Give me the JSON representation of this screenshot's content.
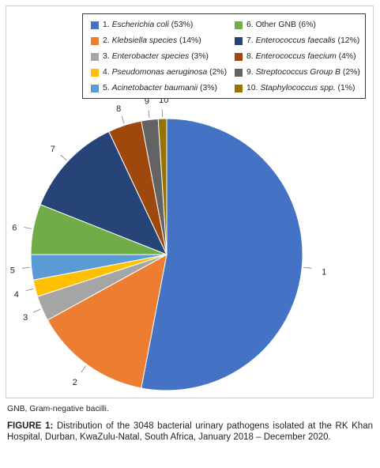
{
  "chart_data": {
    "type": "pie",
    "slices": [
      {
        "id": "1",
        "name": "Escherichia coli",
        "prefix": "1. ",
        "suffix": " (53%)",
        "value": 53,
        "color": "#4472C4"
      },
      {
        "id": "2",
        "name": "Klebsiella species",
        "prefix": "2. ",
        "suffix": " (14%)",
        "value": 14,
        "color": "#ED7D31"
      },
      {
        "id": "3",
        "name": "Enterobacter species",
        "prefix": "3. ",
        "suffix": " (3%)",
        "value": 3,
        "color": "#A5A5A5"
      },
      {
        "id": "4",
        "name": "Pseudomonas aeruginosa",
        "prefix": "4. ",
        "suffix": " (2%)",
        "value": 2,
        "color": "#FFC000"
      },
      {
        "id": "5",
        "name": "Acinetobacter baumanii",
        "prefix": "5. ",
        "suffix": " (3%)",
        "value": 3,
        "color": "#5B9BD5"
      },
      {
        "id": "6",
        "name": "Other GNB",
        "prefix": "6. ",
        "suffix": " (6%)",
        "value": 6,
        "color": "#70AD47",
        "italic": false
      },
      {
        "id": "7",
        "name": "Enterococcus faecalis",
        "prefix": "7. ",
        "suffix": " (12%)",
        "value": 12,
        "color": "#264478"
      },
      {
        "id": "8",
        "name": "Enterococcus faecium",
        "prefix": "8. ",
        "suffix": " (4%)",
        "value": 4,
        "color": "#9E480E"
      },
      {
        "id": "9",
        "name": "Streptococcus Group B",
        "prefix": "9. ",
        "suffix": " (2%)",
        "value": 2,
        "color": "#636363"
      },
      {
        "id": "10",
        "name": "Staphylococcus spp.",
        "prefix": "10. ",
        "suffix": " (1%)",
        "value": 1,
        "color": "#997300"
      }
    ],
    "legend_placement": "top",
    "start_angle": "top, clockwise"
  },
  "footnote": "GNB, Gram-negative bacilli.",
  "caption": {
    "label": "FIGURE 1:",
    "text": " Distribution of the 3048 bacterial urinary pathogens isolated at the RK Khan Hospital, Durban, KwaZulu-Natal, South Africa, January 2018 – December 2020."
  }
}
